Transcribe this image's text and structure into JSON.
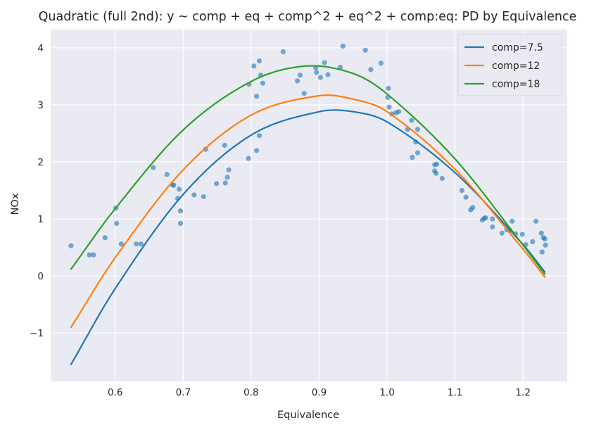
{
  "chart_data": {
    "type": "scatter",
    "title": "Quadratic (full 2nd): y ~ comp + eq + comp^2 + eq^2 + comp:eq: PD by Equivalence",
    "xlabel": "Equivalence",
    "ylabel": "NOx",
    "xlim": [
      0.505,
      1.265
    ],
    "ylim": [
      -1.85,
      4.32
    ],
    "xticks": [
      0.6,
      0.7,
      0.8,
      0.9,
      1.0,
      1.1,
      1.2
    ],
    "yticks": [
      -1,
      0,
      1,
      2,
      3,
      4
    ],
    "grid": true,
    "legend_position": "top-right",
    "background_color": "#eaeaf2",
    "grid_color": "#ffffff",
    "scatter": {
      "color": "#1f77b4",
      "alpha": 0.6,
      "points": [
        [
          0.535,
          0.53
        ],
        [
          0.562,
          0.37
        ],
        [
          0.568,
          0.37
        ],
        [
          0.585,
          0.67
        ],
        [
          0.601,
          1.19
        ],
        [
          0.602,
          0.92
        ],
        [
          0.609,
          0.56
        ],
        [
          0.631,
          0.56
        ],
        [
          0.638,
          0.56
        ],
        [
          0.656,
          1.9
        ],
        [
          0.676,
          1.78
        ],
        [
          0.684,
          1.6
        ],
        [
          0.686,
          1.59
        ],
        [
          0.692,
          1.36
        ],
        [
          0.694,
          1.52
        ],
        [
          0.696,
          0.92
        ],
        [
          0.696,
          1.14
        ],
        [
          0.716,
          1.42
        ],
        [
          0.73,
          1.39
        ],
        [
          0.733,
          2.22
        ],
        [
          0.749,
          1.62
        ],
        [
          0.761,
          2.29
        ],
        [
          0.762,
          1.63
        ],
        [
          0.765,
          1.73
        ],
        [
          0.767,
          1.86
        ],
        [
          0.796,
          2.06
        ],
        [
          0.797,
          3.36
        ],
        [
          0.804,
          3.68
        ],
        [
          0.808,
          2.2
        ],
        [
          0.808,
          3.15
        ],
        [
          0.812,
          2.46
        ],
        [
          0.812,
          3.77
        ],
        [
          0.814,
          3.52
        ],
        [
          0.817,
          3.38
        ],
        [
          0.847,
          3.93
        ],
        [
          0.868,
          3.42
        ],
        [
          0.872,
          3.52
        ],
        [
          0.878,
          3.2
        ],
        [
          0.895,
          3.65
        ],
        [
          0.896,
          3.57
        ],
        [
          0.902,
          3.48
        ],
        [
          0.908,
          3.74
        ],
        [
          0.913,
          3.53
        ],
        [
          0.931,
          3.66
        ],
        [
          0.935,
          4.03
        ],
        [
          0.968,
          3.96
        ],
        [
          0.976,
          3.62
        ],
        [
          0.991,
          3.73
        ],
        [
          1.001,
          3.13
        ],
        [
          1.002,
          3.29
        ],
        [
          1.003,
          2.96
        ],
        [
          1.007,
          2.84
        ],
        [
          1.013,
          2.86
        ],
        [
          1.017,
          2.88
        ],
        [
          1.03,
          2.57
        ],
        [
          1.036,
          2.73
        ],
        [
          1.037,
          2.08
        ],
        [
          1.042,
          2.35
        ],
        [
          1.045,
          2.16
        ],
        [
          1.045,
          2.57
        ],
        [
          1.07,
          1.95
        ],
        [
          1.07,
          1.84
        ],
        [
          1.072,
          1.8
        ],
        [
          1.073,
          1.96
        ],
        [
          1.081,
          1.71
        ],
        [
          1.11,
          1.5
        ],
        [
          1.116,
          1.38
        ],
        [
          1.123,
          1.16
        ],
        [
          1.126,
          1.2
        ],
        [
          1.14,
          0.98
        ],
        [
          1.143,
          1.01
        ],
        [
          1.145,
          1.02
        ],
        [
          1.155,
          0.86
        ],
        [
          1.155,
          1.0
        ],
        [
          1.169,
          0.75
        ],
        [
          1.176,
          0.81
        ],
        [
          1.181,
          0.8
        ],
        [
          1.184,
          0.96
        ],
        [
          1.189,
          0.74
        ],
        [
          1.199,
          0.73
        ],
        [
          1.204,
          0.55
        ],
        [
          1.214,
          0.6
        ],
        [
          1.219,
          0.96
        ],
        [
          1.227,
          0.75
        ],
        [
          1.228,
          0.42
        ],
        [
          1.23,
          0.67
        ],
        [
          1.232,
          0.65
        ],
        [
          1.233,
          0.54
        ]
      ]
    },
    "series": [
      {
        "name": "comp=7.5",
        "color": "#1f77b4",
        "x": [
          0.535,
          0.6,
          0.7,
          0.8,
          0.9,
          0.95,
          1.0,
          1.1,
          1.2,
          1.232
        ],
        "y": [
          -1.55,
          -0.22,
          1.43,
          2.47,
          2.88,
          2.88,
          2.7,
          1.81,
          0.55,
          0.07
        ]
      },
      {
        "name": "comp=12",
        "color": "#ff7f0e",
        "x": [
          0.535,
          0.6,
          0.7,
          0.8,
          0.9,
          0.95,
          1.0,
          1.1,
          1.2,
          1.232
        ],
        "y": [
          -0.9,
          0.32,
          1.86,
          2.82,
          3.16,
          3.1,
          2.88,
          1.87,
          0.47,
          -0.02
        ]
      },
      {
        "name": "comp=18",
        "color": "#2ca02c",
        "x": [
          0.535,
          0.6,
          0.7,
          0.8,
          0.88,
          0.95,
          1.0,
          1.1,
          1.2,
          1.232
        ],
        "y": [
          0.12,
          1.18,
          2.56,
          3.41,
          3.68,
          3.55,
          3.19,
          2.05,
          0.54,
          0.03
        ]
      }
    ]
  }
}
